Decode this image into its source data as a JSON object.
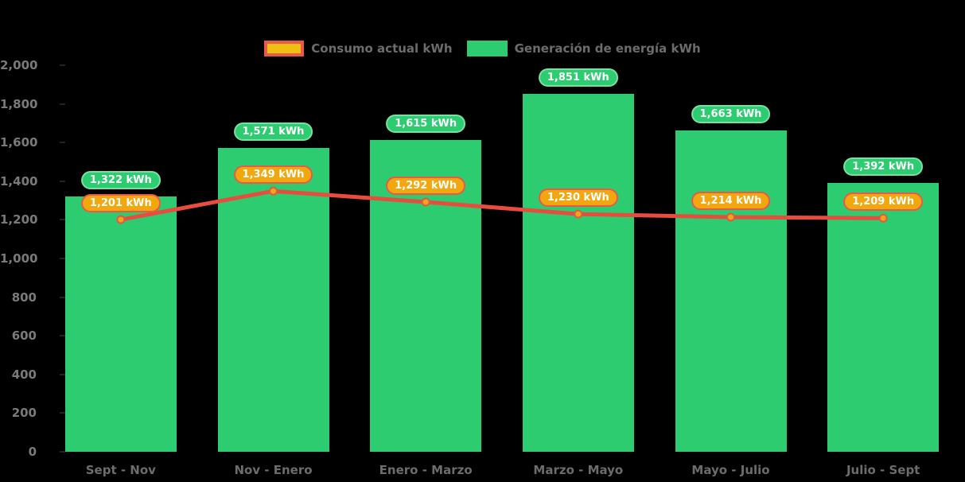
{
  "legend": {
    "items": [
      {
        "label": "Consumo actual kWh"
      },
      {
        "label": "Generación de energía kWh"
      }
    ]
  },
  "colors": {
    "background": "#000000",
    "bar_fill": "#2ECC71",
    "bar_pill_fill": "#2ECC71",
    "bar_pill_border": "#79E0A4",
    "line_stroke": "#E74C3C",
    "marker_fill": "#F2A70E",
    "marker_stroke": "#E2574C",
    "consumption_pill_fill": "#F2A70E",
    "consumption_pill_border": "#E8594A",
    "legend_consumo_fill": "#EFC011",
    "legend_consumo_border": "#E8594A",
    "axis_text": "#7a7a7a"
  },
  "chart_data": {
    "type": "bar",
    "subtype": "bar-and-line combo",
    "title": "",
    "xlabel": "",
    "ylabel": "",
    "grid": false,
    "legend_position": "top-center",
    "ylim": [
      0,
      2000
    ],
    "categories": [
      "Sept - Nov",
      "Nov - Enero",
      "Enero - Marzo",
      "Marzo - Mayo",
      "Mayo - Julio",
      "Julio - Sept"
    ],
    "series": [
      {
        "name": "Generación de energía kWh",
        "type": "bar",
        "values": [
          1322,
          1571,
          1615,
          1851,
          1663,
          1392
        ],
        "labels": [
          "1,322 kWh",
          "1,571 kWh",
          "1,615 kWh",
          "1,851 kWh",
          "1,663 kWh",
          "1,392 kWh"
        ]
      },
      {
        "name": "Consumo actual kWh",
        "type": "line",
        "values": [
          1201,
          1349,
          1292,
          1230,
          1214,
          1209
        ],
        "labels": [
          "1,201 kWh",
          "1,349 kWh",
          "1,292 kWh",
          "1,230 kWh",
          "1,214 kWh",
          "1,209 kWh"
        ]
      }
    ],
    "yticks": [
      {
        "v": 0,
        "label": "0"
      },
      {
        "v": 200,
        "label": "200"
      },
      {
        "v": 400,
        "label": "400"
      },
      {
        "v": 600,
        "label": "600"
      },
      {
        "v": 800,
        "label": "800"
      },
      {
        "v": 1000,
        "label": "1,000"
      },
      {
        "v": 1200,
        "label": "1,200"
      },
      {
        "v": 1400,
        "label": "1,400"
      },
      {
        "v": 1600,
        "label": "1,600"
      },
      {
        "v": 1800,
        "label": "1,800"
      },
      {
        "v": 2000,
        "label": "2,000"
      }
    ]
  }
}
